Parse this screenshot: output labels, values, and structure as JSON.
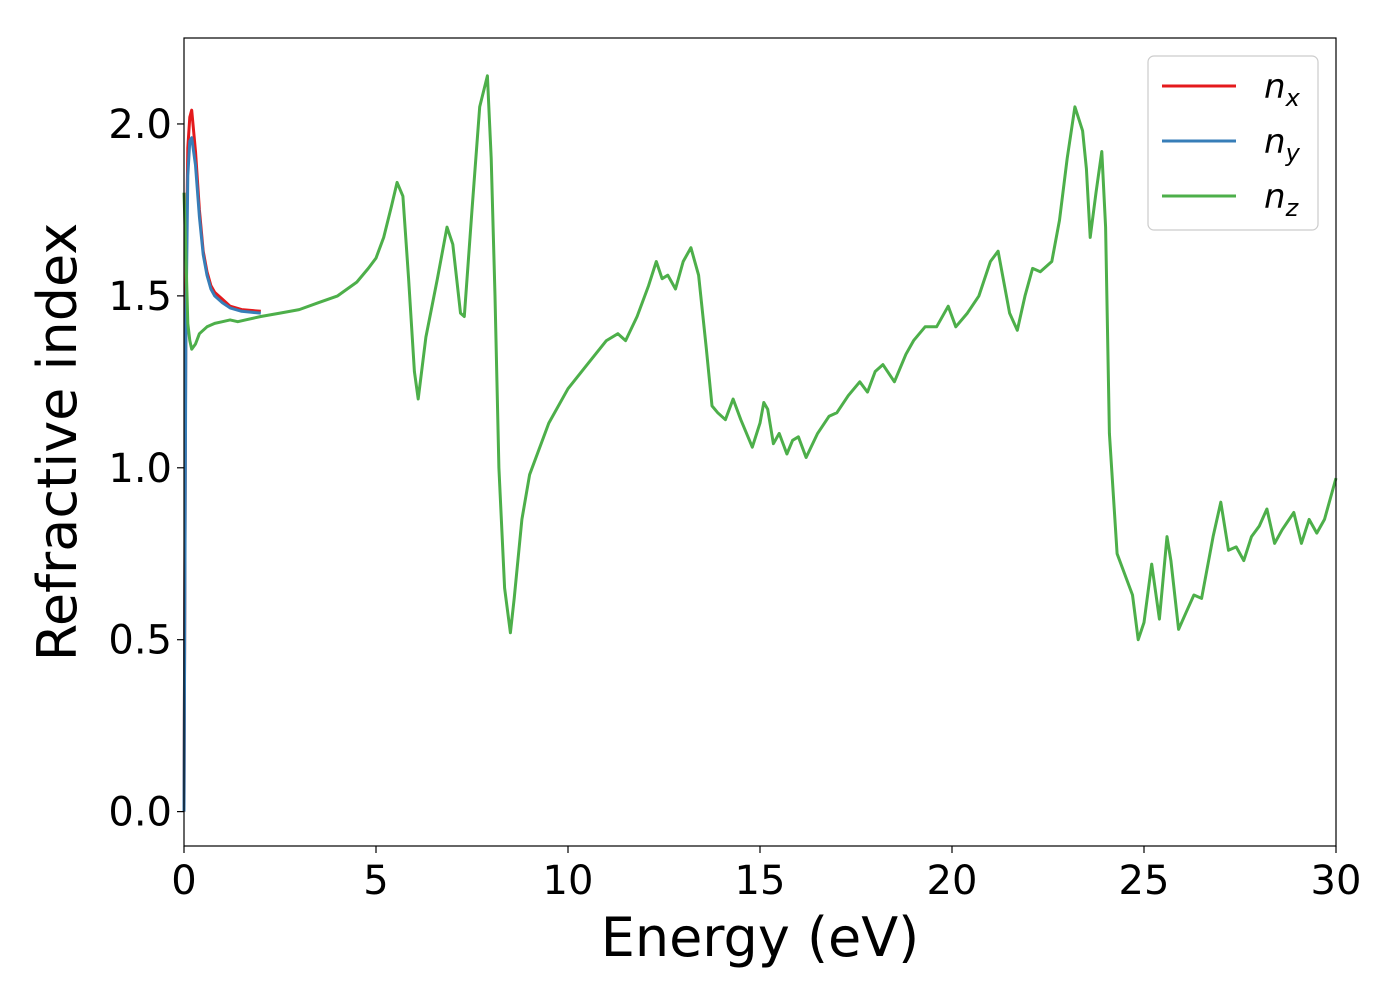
{
  "chart_data": {
    "type": "line",
    "xlabel": "Energy (eV)",
    "ylabel": "Refractive index",
    "xlim": [
      0,
      30
    ],
    "ylim": [
      -0.1,
      2.25
    ],
    "xticks": [
      0,
      5,
      10,
      15,
      20,
      25,
      30
    ],
    "xtick_labels": [
      "0",
      "5",
      "10",
      "15",
      "20",
      "25",
      "30"
    ],
    "yticks": [
      0.0,
      0.5,
      1.0,
      1.5,
      2.0
    ],
    "ytick_labels": [
      "0.0",
      "0.5",
      "1.0",
      "1.5",
      "2.0"
    ],
    "grid": false,
    "legend_position": "top-right",
    "series": [
      {
        "name": "n_x",
        "label_main": "n",
        "label_sub": "x",
        "color": "#e41a1c",
        "x": [
          0,
          0.05,
          0.1,
          0.15,
          0.2,
          0.3,
          0.4,
          0.5,
          0.6,
          0.7,
          0.8,
          1.0,
          1.2,
          1.5,
          2.0
        ],
        "y": [
          0.0,
          1.5,
          1.93,
          2.02,
          2.04,
          1.92,
          1.75,
          1.63,
          1.57,
          1.53,
          1.51,
          1.49,
          1.47,
          1.46,
          1.455
        ]
      },
      {
        "name": "n_y",
        "label_main": "n",
        "label_sub": "y",
        "color": "#377eb8",
        "x": [
          0,
          0.05,
          0.1,
          0.15,
          0.2,
          0.3,
          0.4,
          0.5,
          0.6,
          0.7,
          0.8,
          1.0,
          1.2,
          1.5,
          2.0
        ],
        "y": [
          0.0,
          1.4,
          1.85,
          1.95,
          1.96,
          1.88,
          1.73,
          1.62,
          1.56,
          1.52,
          1.5,
          1.48,
          1.465,
          1.455,
          1.45
        ]
      },
      {
        "name": "n_z",
        "label_main": "n",
        "label_sub": "z",
        "color": "#4daf4a",
        "x": [
          0,
          0.05,
          0.1,
          0.15,
          0.2,
          0.3,
          0.4,
          0.6,
          0.8,
          1.0,
          1.2,
          1.4,
          1.6,
          2.0,
          2.5,
          3.0,
          3.5,
          4.0,
          4.5,
          4.8,
          5.0,
          5.2,
          5.4,
          5.55,
          5.7,
          5.85,
          6.0,
          6.1,
          6.3,
          6.6,
          6.85,
          7.0,
          7.2,
          7.3,
          7.5,
          7.7,
          7.9,
          8.0,
          8.1,
          8.2,
          8.35,
          8.5,
          8.6,
          8.8,
          9.0,
          9.5,
          10.0,
          10.5,
          11.0,
          11.3,
          11.5,
          11.8,
          12.1,
          12.3,
          12.45,
          12.6,
          12.8,
          13.0,
          13.2,
          13.4,
          13.6,
          13.75,
          13.9,
          14.1,
          14.3,
          14.5,
          14.8,
          15.0,
          15.1,
          15.2,
          15.35,
          15.5,
          15.7,
          15.85,
          16.0,
          16.2,
          16.5,
          16.8,
          17.0,
          17.3,
          17.6,
          17.8,
          18.0,
          18.2,
          18.5,
          18.8,
          19.0,
          19.3,
          19.6,
          19.9,
          20.1,
          20.4,
          20.7,
          21.0,
          21.2,
          21.5,
          21.7,
          21.9,
          22.1,
          22.3,
          22.6,
          22.8,
          23.0,
          23.2,
          23.4,
          23.5,
          23.6,
          23.75,
          23.9,
          24.0,
          24.1,
          24.3,
          24.5,
          24.7,
          24.85,
          25.0,
          25.2,
          25.4,
          25.6,
          25.7,
          25.9,
          26.1,
          26.3,
          26.5,
          26.8,
          27.0,
          27.2,
          27.4,
          27.6,
          27.8,
          28.0,
          28.2,
          28.4,
          28.6,
          28.9,
          29.1,
          29.3,
          29.5,
          29.7,
          30.0
        ],
        "y": [
          1.8,
          1.62,
          1.42,
          1.37,
          1.345,
          1.36,
          1.39,
          1.41,
          1.42,
          1.425,
          1.43,
          1.425,
          1.43,
          1.44,
          1.45,
          1.46,
          1.48,
          1.5,
          1.54,
          1.58,
          1.61,
          1.67,
          1.76,
          1.83,
          1.79,
          1.55,
          1.28,
          1.2,
          1.38,
          1.55,
          1.7,
          1.65,
          1.45,
          1.44,
          1.75,
          2.05,
          2.14,
          1.9,
          1.5,
          1.0,
          0.65,
          0.52,
          0.62,
          0.85,
          0.98,
          1.13,
          1.23,
          1.3,
          1.37,
          1.39,
          1.37,
          1.44,
          1.53,
          1.6,
          1.55,
          1.56,
          1.52,
          1.6,
          1.64,
          1.56,
          1.35,
          1.18,
          1.16,
          1.14,
          1.2,
          1.14,
          1.06,
          1.13,
          1.19,
          1.17,
          1.07,
          1.1,
          1.04,
          1.08,
          1.09,
          1.03,
          1.1,
          1.15,
          1.16,
          1.21,
          1.25,
          1.22,
          1.28,
          1.3,
          1.25,
          1.33,
          1.37,
          1.41,
          1.41,
          1.47,
          1.41,
          1.45,
          1.5,
          1.6,
          1.63,
          1.45,
          1.4,
          1.5,
          1.58,
          1.57,
          1.6,
          1.72,
          1.9,
          2.05,
          1.98,
          1.87,
          1.67,
          1.8,
          1.92,
          1.7,
          1.1,
          0.75,
          0.69,
          0.63,
          0.5,
          0.55,
          0.72,
          0.56,
          0.8,
          0.73,
          0.53,
          0.58,
          0.63,
          0.62,
          0.8,
          0.9,
          0.76,
          0.77,
          0.73,
          0.8,
          0.83,
          0.88,
          0.78,
          0.82,
          0.87,
          0.78,
          0.85,
          0.81,
          0.85,
          0.97
        ]
      }
    ]
  }
}
